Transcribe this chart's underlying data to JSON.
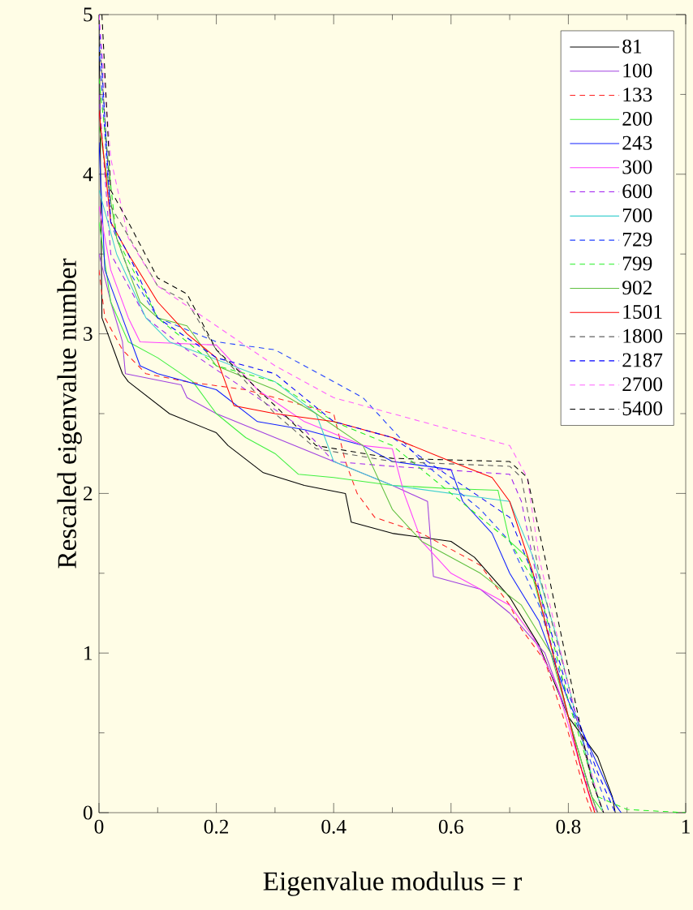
{
  "chart_data": {
    "type": "line",
    "xlabel": "Eigenvalue modulus = r",
    "ylabel": "Rescaled eigenvalue number",
    "xlim": [
      0,
      1
    ],
    "ylim": [
      0,
      5
    ],
    "xticks": [
      0,
      0.2,
      0.4,
      0.6,
      0.8,
      1
    ],
    "yticks": [
      0,
      1,
      2,
      3,
      4,
      5
    ],
    "grid": false,
    "legend": "top right",
    "marker": "none",
    "series": [
      {
        "name": "81",
        "color": "#000000",
        "line_style": "solid",
        "x": [
          0,
          0.005,
          0.04,
          0.05,
          0.12,
          0.2,
          0.22,
          0.28,
          0.35,
          0.42,
          0.43,
          0.5,
          0.6,
          0.64,
          0.7,
          0.75,
          0.8,
          0.85,
          0.875,
          0.88
        ],
        "values": [
          5,
          3.1,
          2.75,
          2.7,
          2.5,
          2.38,
          2.3,
          2.13,
          2.05,
          2.0,
          1.82,
          1.75,
          1.7,
          1.6,
          1.35,
          1.05,
          0.6,
          0.35,
          0.1,
          0
        ]
      },
      {
        "name": "100",
        "color": "#a040e0",
        "line_style": "solid",
        "x": [
          0,
          0.02,
          0.04,
          0.045,
          0.14,
          0.15,
          0.2,
          0.3,
          0.4,
          0.5,
          0.56,
          0.57,
          0.65,
          0.7,
          0.76,
          0.8,
          0.84,
          0.85
        ],
        "values": [
          3.5,
          3.2,
          2.95,
          2.75,
          2.68,
          2.6,
          2.5,
          2.35,
          2.2,
          2.05,
          1.95,
          1.48,
          1.4,
          1.25,
          1.0,
          0.6,
          0.1,
          0
        ]
      },
      {
        "name": "133",
        "color": "#ff2020",
        "line_style": "dashed",
        "x": [
          0,
          0.01,
          0.04,
          0.08,
          0.15,
          0.25,
          0.4,
          0.42,
          0.44,
          0.47,
          0.55,
          0.65,
          0.7,
          0.72,
          0.76,
          0.8,
          0.83,
          0.84
        ],
        "values": [
          3.4,
          3.1,
          2.9,
          2.75,
          2.7,
          2.65,
          2.5,
          2.2,
          2.0,
          1.85,
          1.75,
          1.55,
          1.3,
          1.15,
          0.95,
          0.5,
          0.1,
          0
        ]
      },
      {
        "name": "200",
        "color": "#40f040",
        "line_style": "solid",
        "x": [
          0,
          0.02,
          0.05,
          0.1,
          0.16,
          0.2,
          0.25,
          0.3,
          0.34,
          0.4,
          0.5,
          0.6,
          0.68,
          0.7,
          0.73,
          0.76,
          0.8,
          0.84,
          0.86
        ],
        "values": [
          3.7,
          3.2,
          2.95,
          2.85,
          2.7,
          2.5,
          2.35,
          2.25,
          2.12,
          2.1,
          2.05,
          2.03,
          2.02,
          1.7,
          1.6,
          1.2,
          0.6,
          0.1,
          0
        ]
      },
      {
        "name": "243",
        "color": "#1020ff",
        "line_style": "solid",
        "x": [
          0,
          0.01,
          0.04,
          0.07,
          0.1,
          0.2,
          0.27,
          0.35,
          0.45,
          0.5,
          0.6,
          0.62,
          0.67,
          0.7,
          0.75,
          0.8,
          0.85,
          0.88,
          0.89
        ],
        "values": [
          4.2,
          3.4,
          3.1,
          2.8,
          2.75,
          2.65,
          2.45,
          2.4,
          2.3,
          2.2,
          2.15,
          1.95,
          1.75,
          1.5,
          1.2,
          0.7,
          0.3,
          0.05,
          0
        ]
      },
      {
        "name": "300",
        "color": "#ff40ff",
        "line_style": "solid",
        "x": [
          0,
          0.02,
          0.05,
          0.07,
          0.2,
          0.27,
          0.35,
          0.45,
          0.5,
          0.52,
          0.55,
          0.6,
          0.7,
          0.74,
          0.78,
          0.82,
          0.84,
          0.85
        ],
        "values": [
          3.8,
          3.4,
          3.1,
          2.95,
          2.93,
          2.65,
          2.45,
          2.3,
          2.28,
          2.0,
          1.7,
          1.5,
          1.3,
          1.1,
          0.8,
          0.3,
          0.05,
          0
        ]
      },
      {
        "name": "600",
        "color": "#a020f0",
        "line_style": "dashed",
        "x": [
          0,
          0.02,
          0.08,
          0.15,
          0.25,
          0.35,
          0.4,
          0.5,
          0.7,
          0.72,
          0.75,
          0.78,
          0.82,
          0.85
        ],
        "values": [
          4.5,
          3.5,
          3.1,
          2.9,
          2.65,
          2.4,
          2.2,
          2.17,
          2.12,
          1.95,
          1.4,
          0.9,
          0.3,
          0
        ]
      },
      {
        "name": "700",
        "color": "#40d0d0",
        "line_style": "solid",
        "x": [
          0,
          0.03,
          0.08,
          0.12,
          0.3,
          0.37,
          0.4,
          0.5,
          0.7,
          0.74,
          0.78,
          0.82,
          0.85,
          0.86
        ],
        "values": [
          3.9,
          3.5,
          3.1,
          2.95,
          2.7,
          2.5,
          2.2,
          2.05,
          1.95,
          1.6,
          1.1,
          0.5,
          0.1,
          0
        ]
      },
      {
        "name": "729",
        "color": "#2040ff",
        "line_style": "dashed",
        "x": [
          0,
          0.02,
          0.05,
          0.1,
          0.2,
          0.3,
          0.35,
          0.45,
          0.55,
          0.65,
          0.7,
          0.75,
          0.8,
          0.85,
          0.87
        ],
        "values": [
          4.8,
          3.7,
          3.4,
          3.1,
          2.95,
          2.9,
          2.8,
          2.6,
          2.2,
          1.9,
          1.7,
          1.3,
          0.7,
          0.2,
          0
        ]
      },
      {
        "name": "799",
        "color": "#20f020",
        "line_style": "dashed",
        "x": [
          0,
          0.03,
          0.1,
          0.2,
          0.3,
          0.4,
          0.5,
          0.6,
          0.7,
          0.75,
          0.8,
          0.85,
          0.9,
          1.0
        ],
        "values": [
          4.6,
          3.6,
          3.1,
          2.8,
          2.7,
          2.45,
          2.3,
          2.0,
          1.7,
          1.4,
          0.7,
          0.1,
          0.02,
          0
        ]
      },
      {
        "name": "902",
        "color": "#60c040",
        "line_style": "solid",
        "x": [
          0,
          0.03,
          0.07,
          0.1,
          0.15,
          0.2,
          0.3,
          0.37,
          0.45,
          0.5,
          0.55,
          0.65,
          0.72,
          0.77,
          0.8,
          0.84,
          0.85
        ],
        "values": [
          4.3,
          3.6,
          3.2,
          3.1,
          3.05,
          2.8,
          2.65,
          2.5,
          2.3,
          1.9,
          1.7,
          1.5,
          1.3,
          1.0,
          0.6,
          0.1,
          0
        ]
      },
      {
        "name": "1501",
        "color": "#ff0000",
        "line_style": "solid",
        "x": [
          0,
          0.02,
          0.05,
          0.1,
          0.15,
          0.2,
          0.23,
          0.3,
          0.4,
          0.5,
          0.6,
          0.67,
          0.7,
          0.74,
          0.78,
          0.82,
          0.845
        ],
        "values": [
          4.4,
          3.7,
          3.5,
          3.2,
          3.0,
          2.85,
          2.55,
          2.5,
          2.45,
          2.35,
          2.2,
          2.1,
          1.95,
          1.5,
          0.9,
          0.3,
          0
        ]
      },
      {
        "name": "1800",
        "color": "#606060",
        "line_style": "dashed",
        "x": [
          0,
          0.02,
          0.1,
          0.15,
          0.2,
          0.3,
          0.37,
          0.5,
          0.7,
          0.72,
          0.75,
          0.8,
          0.84,
          0.86
        ],
        "values": [
          4.9,
          3.8,
          3.3,
          3.2,
          2.9,
          2.5,
          2.28,
          2.2,
          2.17,
          2.1,
          1.5,
          0.8,
          0.2,
          0
        ]
      },
      {
        "name": "2187",
        "color": "#0000ff",
        "line_style": "dashed",
        "x": [
          0,
          0.02,
          0.05,
          0.1,
          0.2,
          0.3,
          0.4,
          0.5,
          0.6,
          0.7,
          0.75,
          0.8,
          0.85,
          0.88
        ],
        "values": [
          5.0,
          3.7,
          3.5,
          3.1,
          2.85,
          2.75,
          2.45,
          2.35,
          2.1,
          1.85,
          1.4,
          0.75,
          0.25,
          0
        ]
      },
      {
        "name": "2700",
        "color": "#ff60ff",
        "line_style": "dashed",
        "x": [
          0,
          0.02,
          0.05,
          0.1,
          0.2,
          0.3,
          0.4,
          0.5,
          0.6,
          0.7,
          0.73,
          0.75,
          0.8,
          0.85,
          0.86
        ],
        "values": [
          5.0,
          4.1,
          3.6,
          3.3,
          3.05,
          2.8,
          2.6,
          2.5,
          2.4,
          2.3,
          2.1,
          1.6,
          0.8,
          0.1,
          0
        ]
      },
      {
        "name": "5400",
        "color": "#000000",
        "line_style": "dashed",
        "x": [
          0.005,
          0.02,
          0.05,
          0.1,
          0.15,
          0.2,
          0.3,
          0.37,
          0.5,
          0.7,
          0.73,
          0.76,
          0.8,
          0.84,
          0.86
        ],
        "values": [
          5.0,
          3.9,
          3.7,
          3.35,
          3.25,
          2.9,
          2.55,
          2.3,
          2.22,
          2.2,
          2.1,
          1.6,
          0.9,
          0.2,
          0
        ]
      }
    ]
  }
}
